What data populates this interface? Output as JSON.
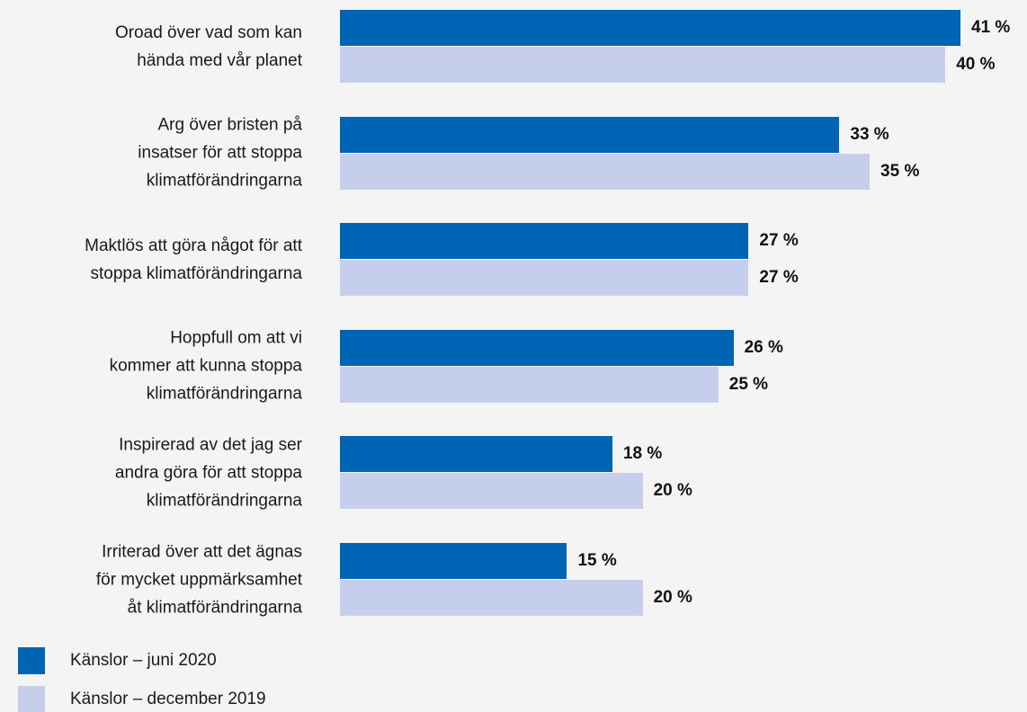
{
  "chart_data": {
    "type": "bar",
    "orientation": "horizontal",
    "categories": [
      "Oroad över vad som kan\nhända med vår planet",
      "Arg över bristen på\ninsatser för att stoppa\nklimatförändringarna",
      "Maktlös att göra något för att\nstoppa klimatförändringarna",
      "Hoppfull om att vi\nkommer att kunna stoppa\nklimatförändringarna",
      "Inspirerad av det jag ser\nandra göra för att stoppa\nklimatförändringarna",
      "Irriterad över att det ägnas\nför mycket uppmärksamhet\nåt klimatförändringarna"
    ],
    "series": [
      {
        "name": "Känslor – juni 2020",
        "color": "#0064b4",
        "values": [
          41,
          33,
          27,
          26,
          18,
          15
        ],
        "value_labels": [
          "41 %",
          "33 %",
          "27 %",
          "26 %",
          "18 %",
          "15 %"
        ]
      },
      {
        "name": "Känslor – december 2019",
        "color": "#c5cfeb",
        "values": [
          40,
          35,
          27,
          25,
          20,
          20
        ],
        "value_labels": [
          "40 %",
          "35 %",
          "27 %",
          "25 %",
          "20 %",
          "20 %"
        ]
      }
    ]
  }
}
